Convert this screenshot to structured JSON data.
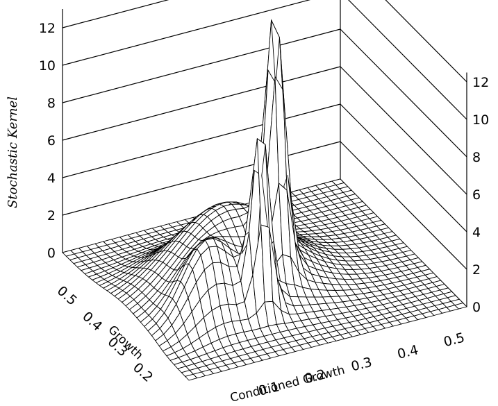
{
  "chart_data": {
    "type": "surface",
    "title": "",
    "xlabel": "Conditioned Growth",
    "ylabel": "Growth",
    "zlabel": "Stochastic Kernel",
    "x_ticks": [
      "0.1",
      "0.2",
      "0.3",
      "0.4",
      "0.5"
    ],
    "y_ticks": [
      "0.2",
      "0.3",
      "0.4",
      "0.5"
    ],
    "z_ticks_left": [
      "0",
      "2",
      "4",
      "6",
      "8",
      "10",
      "12"
    ],
    "z_ticks_right": [
      "0",
      "2",
      "4",
      "6",
      "8",
      "10",
      "12"
    ],
    "xlim": [
      0.0,
      0.6
    ],
    "ylim": [
      0.1,
      0.6
    ],
    "zlim": [
      0,
      12
    ],
    "grid": true,
    "peaks": [
      {
        "conditioned_growth": 0.29,
        "growth": 0.29,
        "height": 13.0,
        "label": "tall spike at far corner"
      },
      {
        "conditioned_growth": 0.22,
        "growth": 0.22,
        "height": 9.5,
        "label": "spike near front"
      },
      {
        "conditioned_growth": 0.22,
        "growth": 0.35,
        "height": 4.5,
        "label": "central ridge"
      },
      {
        "conditioned_growth": 0.12,
        "growth": 0.25,
        "height": 3.0,
        "label": "left bump"
      }
    ]
  }
}
